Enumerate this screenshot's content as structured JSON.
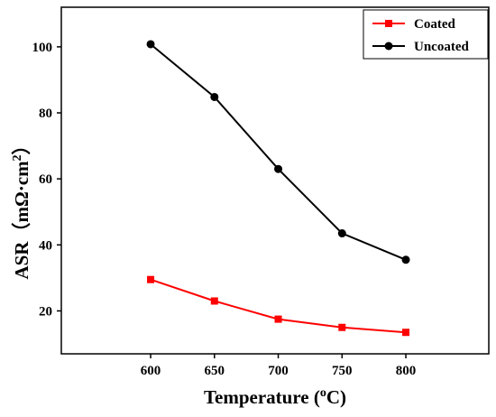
{
  "chart_data": {
    "type": "line",
    "x": [
      600,
      650,
      700,
      750,
      800
    ],
    "xticks": [
      600,
      650,
      700,
      750,
      800
    ],
    "yticks": [
      20,
      40,
      60,
      80,
      100
    ],
    "xlim": [
      530,
      865
    ],
    "ylim": [
      7,
      112
    ],
    "xlabel": {
      "main": "Temperature (",
      "sup": "o",
      "end": "C)"
    },
    "ylabel": {
      "main": "ASR（mΩ·cm",
      "sup": "2",
      "end": "）"
    },
    "grid": false,
    "legend_position": "top-right",
    "series": [
      {
        "name": "Coated",
        "color": "#ff0000",
        "marker": "square",
        "values": [
          29.5,
          23.0,
          17.5,
          15.0,
          13.5
        ]
      },
      {
        "name": "Uncoated",
        "color": "#000000",
        "marker": "circle",
        "values": [
          100.8,
          84.8,
          63.0,
          43.5,
          35.5
        ]
      }
    ]
  }
}
